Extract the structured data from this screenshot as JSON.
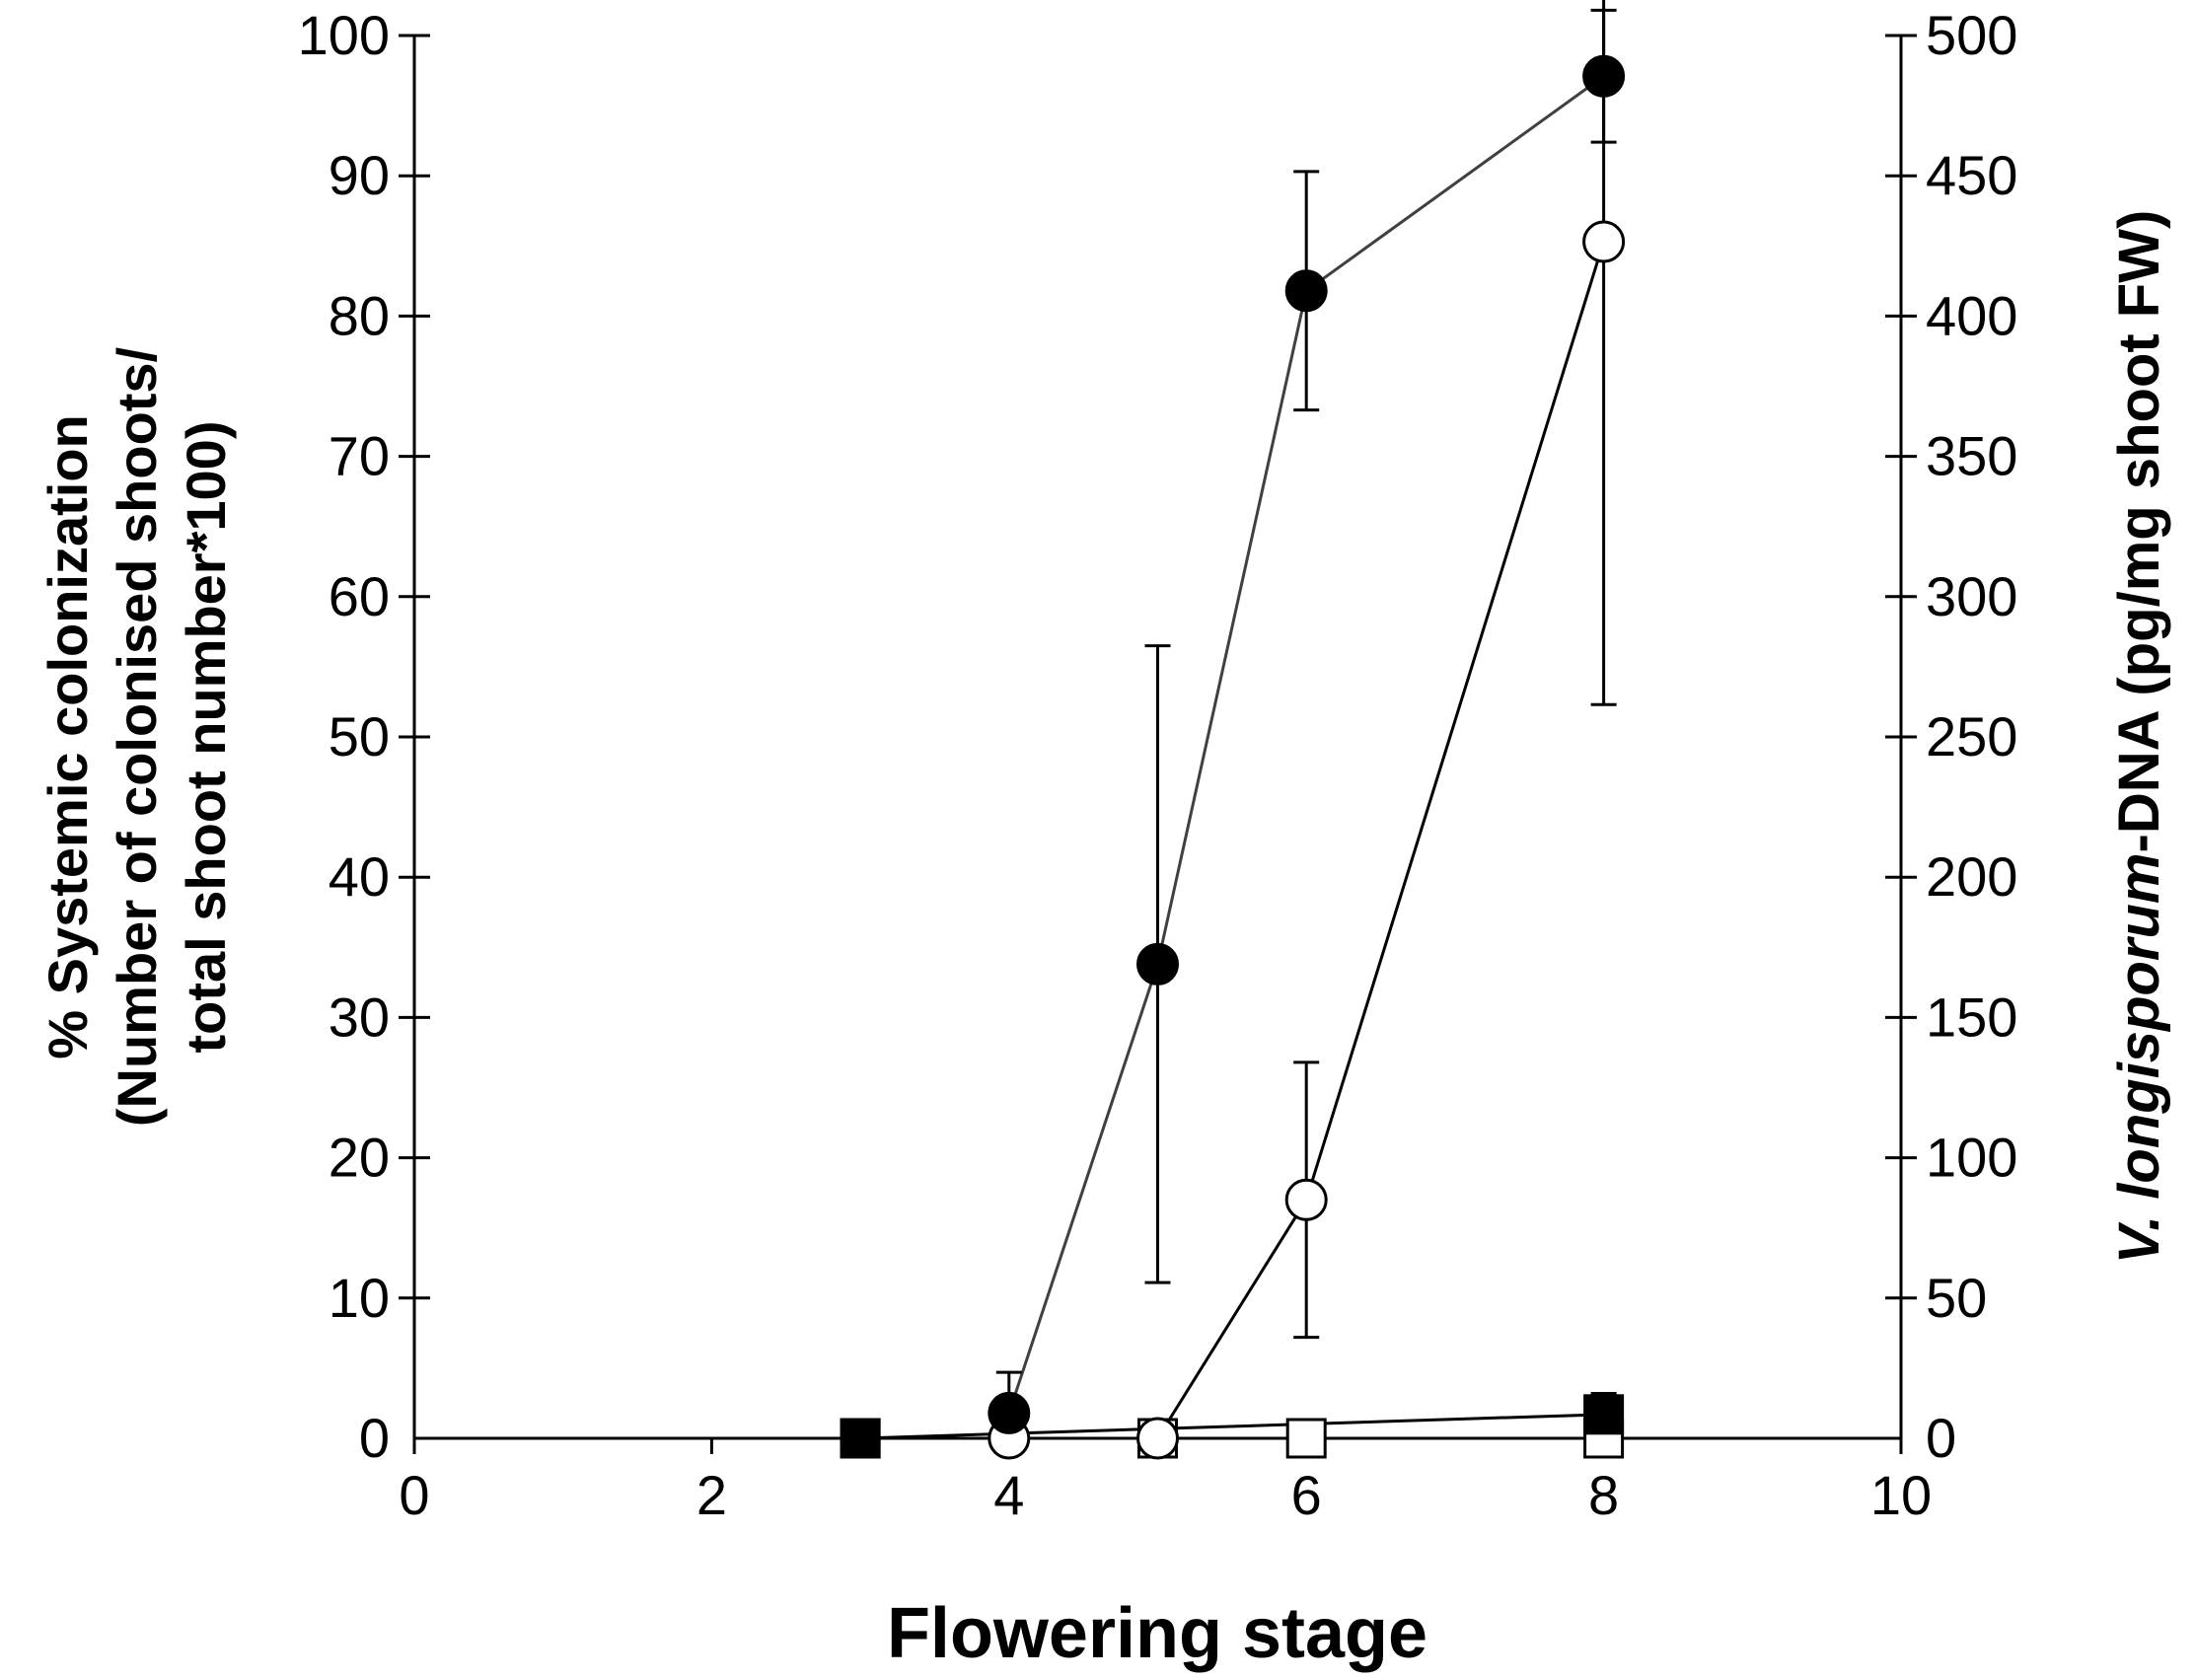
{
  "chart_data": {
    "type": "scatter",
    "xlabel": "Flowering stage",
    "ylabel_left_lines": [
      "% Systemic  colonization",
      "(Number of colonised  shoots/",
      "total shoot number*100)"
    ],
    "ylabel_right_italic": "V. longisporum",
    "ylabel_right_rest": "-DNA  (pg/mg shoot  FW)",
    "xlim": [
      0,
      10
    ],
    "ylim_left": [
      0,
      100
    ],
    "ylim_right": [
      0,
      500
    ],
    "x_ticks": [
      0,
      2,
      4,
      6,
      8,
      10
    ],
    "y_ticks_left": [
      0,
      10,
      20,
      30,
      40,
      50,
      60,
      70,
      80,
      90,
      100
    ],
    "y_ticks_right": [
      0,
      50,
      100,
      150,
      200,
      250,
      300,
      350,
      400,
      450,
      500
    ],
    "grid": false,
    "series": [
      {
        "axis": "left",
        "marker": "circle",
        "fill": "#000000",
        "line_color": "#404040",
        "points": [
          {
            "x": 4,
            "y": 1.8,
            "err": 2.9
          },
          {
            "x": 5,
            "y": 33.8,
            "err": 22.7
          },
          {
            "x": 6,
            "y": 81.8,
            "err": 8.5
          },
          {
            "x": 8,
            "y": 97.1,
            "err": 4.7
          }
        ]
      },
      {
        "axis": "left",
        "marker": "circle",
        "fill": "#ffffff",
        "line_color": "#000000",
        "points": [
          {
            "x": 4,
            "y": 0
          },
          {
            "x": 5,
            "y": 0
          },
          {
            "x": 6,
            "y": 17,
            "err": 9.8
          },
          {
            "x": 8,
            "y": 85.3,
            "err": 33
          }
        ]
      },
      {
        "axis": "right",
        "marker": "square",
        "fill": "#000000",
        "line_color": "#000000",
        "points": [
          {
            "x": 3,
            "y": 0
          },
          {
            "x": 8,
            "y": 8.5,
            "err": 7.5
          }
        ]
      },
      {
        "axis": "right",
        "marker": "square",
        "fill": "#ffffff",
        "line_color": "#000000",
        "points": [
          {
            "x": 3,
            "y": 0
          },
          {
            "x": 5,
            "y": 0
          },
          {
            "x": 6,
            "y": 0
          },
          {
            "x": 8,
            "y": 0
          }
        ]
      }
    ]
  }
}
